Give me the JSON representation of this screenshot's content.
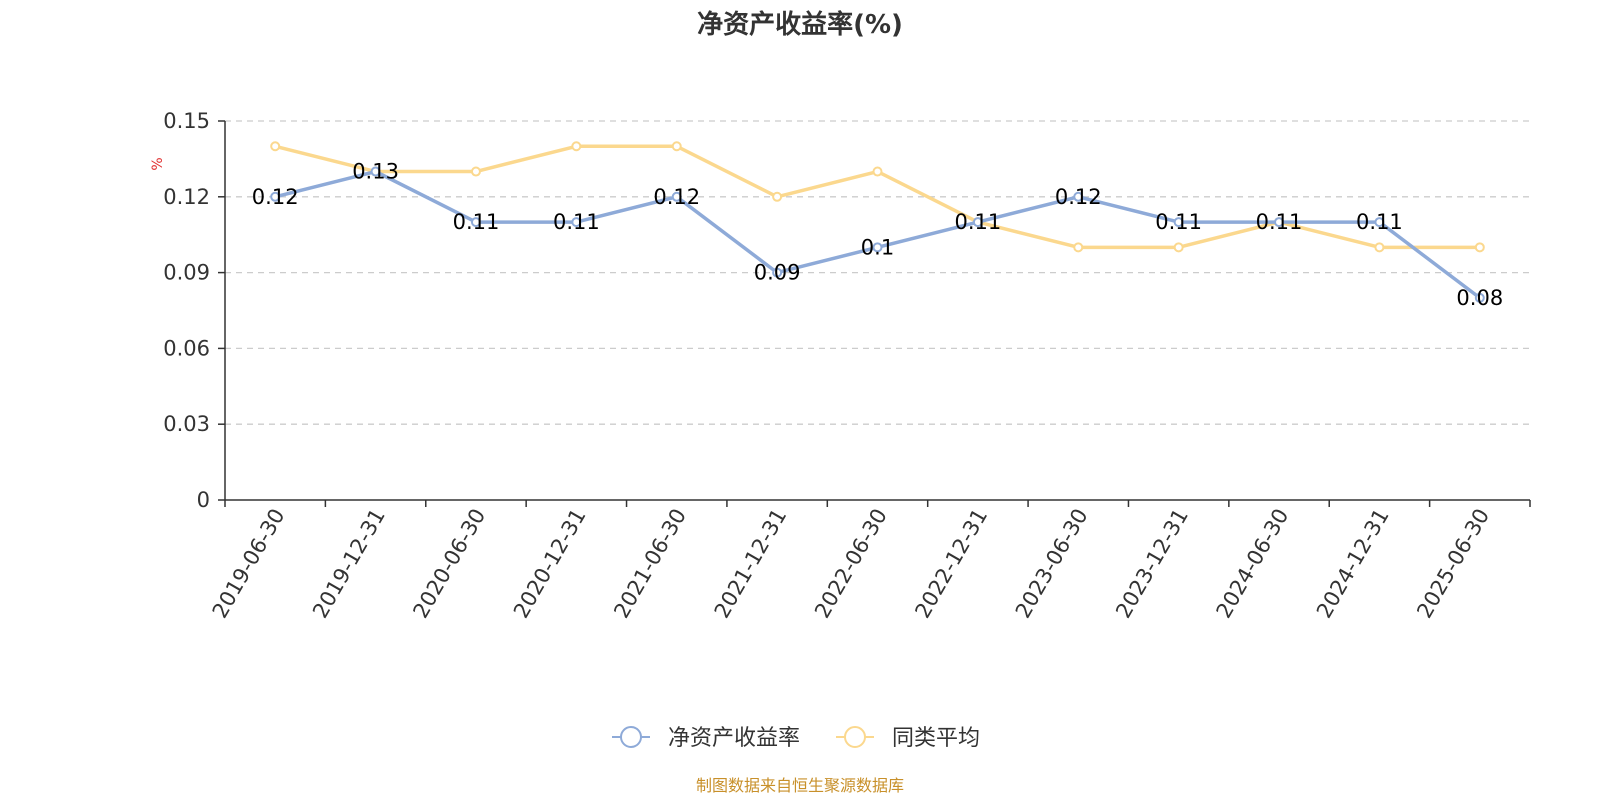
{
  "chart_data": {
    "type": "line",
    "title": "净资产收益率(%)",
    "ylabel": "%",
    "categories": [
      "2019-06-30",
      "2019-12-31",
      "2020-06-30",
      "2020-12-31",
      "2021-06-30",
      "2021-12-31",
      "2022-06-30",
      "2022-12-31",
      "2023-06-30",
      "2023-12-31",
      "2024-06-30",
      "2024-12-31",
      "2025-06-30"
    ],
    "ylim": [
      0,
      0.15
    ],
    "yticks": [
      "0",
      "0.03",
      "0.06",
      "0.09",
      "0.12",
      "0.15"
    ],
    "grid": true,
    "legend_position": "bottom",
    "series": [
      {
        "name": "净资产收益率",
        "color": "#8eaad8",
        "values": [
          0.12,
          0.13,
          0.11,
          0.11,
          0.12,
          0.09,
          0.1,
          0.11,
          0.12,
          0.11,
          0.11,
          0.11,
          0.08
        ],
        "labels": [
          "0.12",
          "0.13",
          "0.11",
          "0.11",
          "0.12",
          "0.09",
          "0.1",
          "0.11",
          "0.12",
          "0.11",
          "0.11",
          "0.11",
          "0.08"
        ]
      },
      {
        "name": "同类平均",
        "color": "#fbd88e",
        "values": [
          0.14,
          0.13,
          0.13,
          0.14,
          0.14,
          0.12,
          0.13,
          0.11,
          0.1,
          0.1,
          0.11,
          0.1,
          0.1
        ]
      }
    ]
  },
  "footer": {
    "source": "制图数据来自恒生聚源数据库",
    "source_color": "#c8902a"
  },
  "colors": {
    "unit_label": "#e03030",
    "axis": "#333333",
    "grid": "#cccccc"
  }
}
